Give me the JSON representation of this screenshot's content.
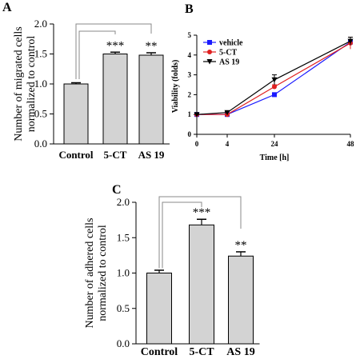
{
  "panels": {
    "a": {
      "label": "A"
    },
    "b": {
      "label": "B"
    },
    "c": {
      "label": "C"
    }
  },
  "chart_data": [
    {
      "id": "A",
      "type": "bar",
      "categories": [
        "Control",
        "5-CT",
        "AS 19"
      ],
      "values": [
        1.0,
        1.5,
        1.48
      ],
      "errors": [
        0.02,
        0.03,
        0.04
      ],
      "significance": [
        "",
        "***",
        "**"
      ],
      "ylabel": [
        "Number of migrated cells",
        "normalized to control"
      ],
      "ylim": [
        0,
        2.0
      ],
      "yticks": [
        "0.0",
        "0.5",
        "1.0",
        "1.5",
        "2.0"
      ],
      "bar_color": "#d3d3d3"
    },
    {
      "id": "B",
      "type": "line",
      "x": [
        0,
        4,
        24,
        48
      ],
      "xticks": [
        "0",
        "4",
        "24",
        "48"
      ],
      "xlabel": "Time [h]",
      "ylabel": "Viability (folds)",
      "ylim": [
        0,
        5
      ],
      "yticks": [
        "0",
        "1",
        "2",
        "3",
        "4",
        "5"
      ],
      "legend": "top-left",
      "series": [
        {
          "name": "vehicle",
          "values": [
            1.0,
            1.0,
            2.0,
            4.65
          ],
          "errors": [
            0.03,
            0.03,
            0.1,
            0.12
          ],
          "color": "#1a1aff",
          "marker": "square"
        },
        {
          "name": "5-CT",
          "values": [
            1.0,
            1.0,
            2.4,
            4.6
          ],
          "errors": [
            0.03,
            0.03,
            0.1,
            0.3
          ],
          "color": "#e02020",
          "marker": "circle"
        },
        {
          "name": "AS 19",
          "values": [
            1.0,
            1.1,
            2.75,
            4.7
          ],
          "errors": [
            0.03,
            0.05,
            0.25,
            0.2
          ],
          "color": "#000000",
          "marker": "triangle-down"
        }
      ]
    },
    {
      "id": "C",
      "type": "bar",
      "categories": [
        "Control",
        "5-CT",
        "AS 19"
      ],
      "values": [
        1.0,
        1.68,
        1.24
      ],
      "errors": [
        0.04,
        0.08,
        0.06
      ],
      "significance": [
        "",
        "***",
        "**"
      ],
      "ylabel": [
        "Number of adhered cells",
        "normalized to control"
      ],
      "ylim": [
        0,
        2.0
      ],
      "yticks": [
        "0.0",
        "0.5",
        "1.0",
        "1.5",
        "2.0"
      ],
      "bar_color": "#d3d3d3"
    }
  ]
}
